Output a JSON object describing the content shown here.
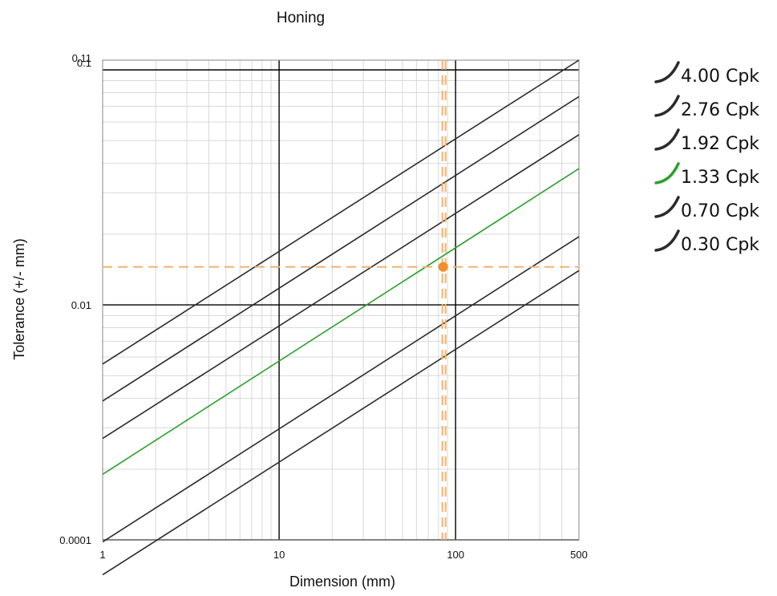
{
  "chart_data": {
    "type": "line",
    "title": "Honing",
    "xlabel": "Dimension (mm)",
    "ylabel": "Tolerance (+/- mm)",
    "x_scale": "log",
    "y_scale": "log",
    "xlim": [
      1,
      500
    ],
    "ylim": [
      0.001,
      0.11
    ],
    "x_ticks": [
      "1",
      "10",
      "100",
      "500"
    ],
    "y_ticks": [
      "0.11",
      "0.1",
      "0.01",
      "0.0001"
    ],
    "grid": true,
    "legend_position": "right",
    "colors": {
      "default_line": "#2b2b2b",
      "highlight_line": "#2ca02c",
      "marker": "#f28e2b",
      "marker_line": "#f5b36a"
    },
    "series": [
      {
        "name": "4.00 Cpk",
        "x": [
          1,
          500
        ],
        "y": [
          0.0056,
          0.11
        ],
        "color": "#2b2b2b"
      },
      {
        "name": "2.76 Cpk",
        "x": [
          1,
          500
        ],
        "y": [
          0.0039,
          0.077
        ],
        "color": "#2b2b2b"
      },
      {
        "name": "1.92 Cpk",
        "x": [
          1,
          500
        ],
        "y": [
          0.0027,
          0.053
        ],
        "color": "#2b2b2b"
      },
      {
        "name": "1.33 Cpk",
        "x": [
          1,
          500
        ],
        "y": [
          0.0019,
          0.038
        ],
        "color": "#2ca02c"
      },
      {
        "name": "0.70 Cpk",
        "x": [
          1,
          500
        ],
        "y": [
          0.00098,
          0.0195
        ],
        "color": "#2b2b2b"
      },
      {
        "name": "0.30 Cpk",
        "x": [
          1,
          500
        ],
        "y": [
          0.00071,
          0.014
        ],
        "color": "#2b2b2b"
      }
    ],
    "marker": {
      "x": 85,
      "y": 0.0145
    }
  }
}
